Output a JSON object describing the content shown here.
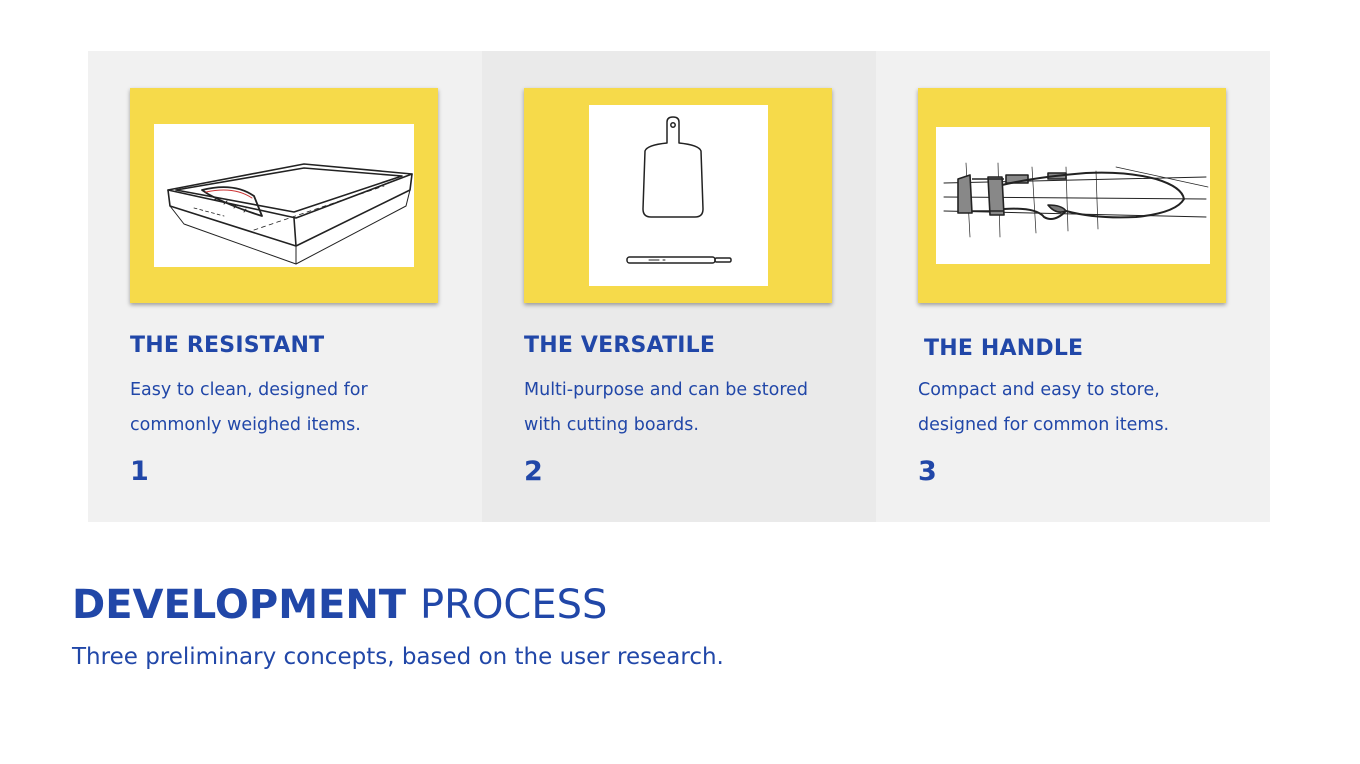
{
  "concepts": [
    {
      "title": "THE RESISTANT",
      "description": "Easy to clean, designed for commonly weighed items.",
      "number": "1",
      "sketch_icon": "tray-scale-sketch-icon"
    },
    {
      "title": "THE VERSATILE",
      "description": "Multi-purpose and can be stored with cutting boards.",
      "number": "2",
      "sketch_icon": "cutting-board-scale-sketch-icon"
    },
    {
      "title": "THE HANDLE",
      "description": "Compact and easy to store, designed for common items.",
      "number": "3",
      "sketch_icon": "handle-scale-sketch-icon"
    }
  ],
  "section": {
    "heading_strong": "DEVELOPMENT",
    "heading_light": "PROCESS",
    "subtitle": "Three preliminary concepts, based on the user research."
  },
  "colors": {
    "text": "#2147a8",
    "card": "#f6da4a",
    "panel": "#f1f1f1",
    "panel_mid": "#eaeaea"
  }
}
